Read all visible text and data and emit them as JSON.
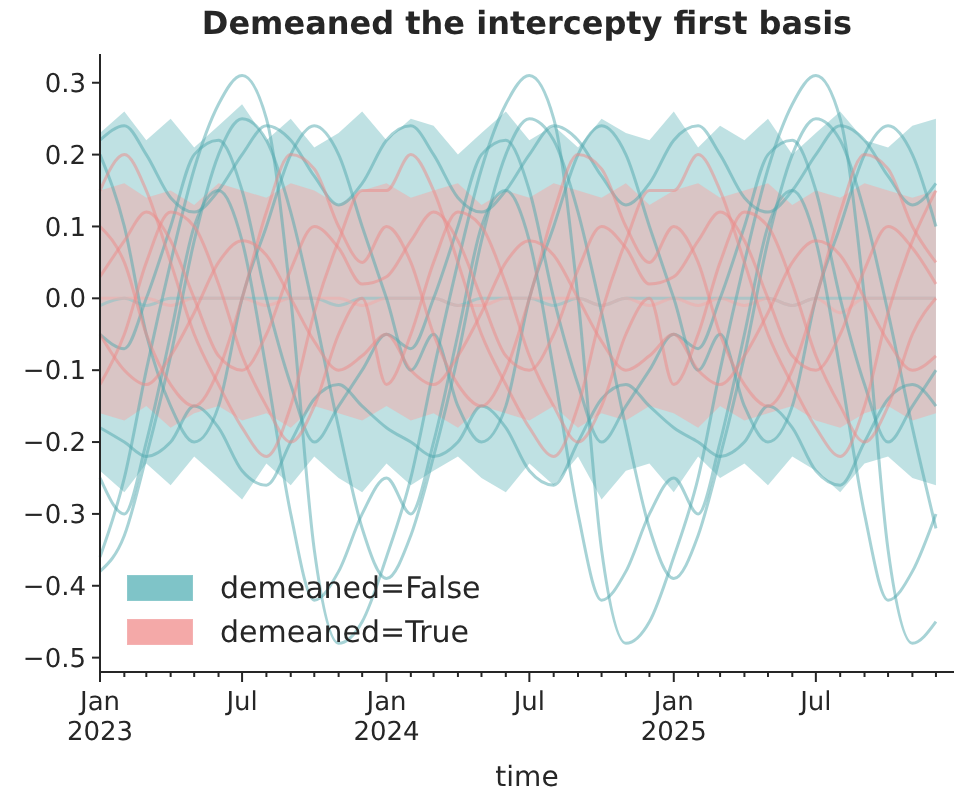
{
  "chart_data": {
    "type": "line",
    "title": "Demeaned the intercepty first basis",
    "xlabel": "time",
    "x": [
      "2023-01",
      "2023-02",
      "2023-03",
      "2023-04",
      "2023-05",
      "2023-06",
      "2023-07",
      "2023-08",
      "2023-09",
      "2023-10",
      "2023-11",
      "2023-12",
      "2024-01",
      "2024-02",
      "2024-03",
      "2024-04",
      "2024-05",
      "2024-06",
      "2024-07",
      "2024-08",
      "2024-09",
      "2024-10",
      "2024-11",
      "2024-12",
      "2025-01",
      "2025-02",
      "2025-03",
      "2025-04",
      "2025-05",
      "2025-06",
      "2025-07",
      "2025-08",
      "2025-09",
      "2025-10",
      "2025-11",
      "2025-12"
    ],
    "xlim": [
      "2023-01-01",
      "2025-12-24"
    ],
    "xticks": [
      {
        "value": "2023-01-01",
        "label": "Jan\n2023"
      },
      {
        "value": "2023-02-01",
        "label": null
      },
      {
        "value": "2023-03-01",
        "label": null
      },
      {
        "value": "2023-04-01",
        "label": null
      },
      {
        "value": "2023-05-01",
        "label": null
      },
      {
        "value": "2023-06-01",
        "label": null
      },
      {
        "value": "2023-07-01",
        "label": "Jul"
      },
      {
        "value": "2023-08-01",
        "label": null
      },
      {
        "value": "2023-09-01",
        "label": null
      },
      {
        "value": "2023-10-01",
        "label": null
      },
      {
        "value": "2023-11-01",
        "label": null
      },
      {
        "value": "2023-12-01",
        "label": null
      },
      {
        "value": "2024-01-01",
        "label": "Jan\n2024"
      },
      {
        "value": "2024-02-01",
        "label": null
      },
      {
        "value": "2024-03-01",
        "label": null
      },
      {
        "value": "2024-04-01",
        "label": null
      },
      {
        "value": "2024-05-01",
        "label": null
      },
      {
        "value": "2024-06-01",
        "label": null
      },
      {
        "value": "2024-07-01",
        "label": "Jul"
      },
      {
        "value": "2024-08-01",
        "label": null
      },
      {
        "value": "2024-09-01",
        "label": null
      },
      {
        "value": "2024-10-01",
        "label": null
      },
      {
        "value": "2024-11-01",
        "label": null
      },
      {
        "value": "2024-12-01",
        "label": null
      },
      {
        "value": "2025-01-01",
        "label": "Jan\n2025"
      },
      {
        "value": "2025-02-01",
        "label": null
      },
      {
        "value": "2025-03-01",
        "label": null
      },
      {
        "value": "2025-04-01",
        "label": null
      },
      {
        "value": "2025-05-01",
        "label": null
      },
      {
        "value": "2025-06-01",
        "label": null
      },
      {
        "value": "2025-07-01",
        "label": "Jul"
      },
      {
        "value": "2025-08-01",
        "label": null
      },
      {
        "value": "2025-09-01",
        "label": null
      },
      {
        "value": "2025-10-01",
        "label": null
      },
      {
        "value": "2025-11-01",
        "label": null
      },
      {
        "value": "2025-12-01",
        "label": null
      }
    ],
    "ylim": [
      -0.52,
      0.34
    ],
    "yticks": [
      {
        "value": -0.5,
        "label": "−0.5"
      },
      {
        "value": -0.4,
        "label": "−0.4"
      },
      {
        "value": -0.3,
        "label": "−0.3"
      },
      {
        "value": -0.2,
        "label": "−0.2"
      },
      {
        "value": -0.1,
        "label": "−0.1"
      },
      {
        "value": 0,
        "label": "0.0"
      },
      {
        "value": 0.1,
        "label": "0.1"
      },
      {
        "value": 0.2,
        "label": "0.2"
      },
      {
        "value": 0.3,
        "label": "0.3"
      }
    ],
    "legend": "bottom left",
    "grid": false,
    "series": [
      {
        "type": "line",
        "name": "demeaned=False",
        "color": "#7fc4c8",
        "values": [
          -0.01,
          0.0,
          -0.01,
          0.0,
          0.0,
          0.0,
          0.0,
          0.0,
          0.0,
          0.0,
          -0.01,
          0.0,
          0.0,
          0.0,
          0.0,
          -0.01,
          0.0,
          0.0,
          0.0,
          -0.01,
          0.0,
          -0.01,
          0.0,
          0.0,
          0.0,
          0.0,
          0.0,
          0.0,
          0.0,
          -0.01,
          0.0,
          0.0,
          0.0,
          0.0,
          0.0,
          0.0
        ],
        "lower": [
          -0.24,
          -0.27,
          -0.23,
          -0.26,
          -0.22,
          -0.25,
          -0.28,
          -0.23,
          -0.26,
          -0.22,
          -0.25,
          -0.27,
          -0.23,
          -0.26,
          -0.24,
          -0.22,
          -0.25,
          -0.27,
          -0.23,
          -0.26,
          -0.22,
          -0.28,
          -0.24,
          -0.23,
          -0.27,
          -0.22,
          -0.25,
          -0.23,
          -0.26,
          -0.22,
          -0.24,
          -0.27,
          -0.23,
          -0.22,
          -0.25,
          -0.26
        ],
        "upper": [
          0.23,
          0.26,
          0.22,
          0.25,
          0.21,
          0.24,
          0.27,
          0.22,
          0.25,
          0.21,
          0.23,
          0.26,
          0.22,
          0.25,
          0.24,
          0.2,
          0.23,
          0.26,
          0.22,
          0.24,
          0.21,
          0.25,
          0.23,
          0.22,
          0.26,
          0.21,
          0.24,
          0.22,
          0.25,
          0.2,
          0.23,
          0.26,
          0.22,
          0.21,
          0.24,
          0.25
        ]
      },
      {
        "type": "line",
        "name": "demeaned=True",
        "color": "#f4a9a8",
        "values": [
          0.0,
          0.0,
          0.0,
          -0.01,
          0.0,
          0.0,
          0.0,
          -0.01,
          0.0,
          0.0,
          0.0,
          -0.01,
          0.0,
          0.0,
          0.0,
          -0.01,
          -0.01,
          0.0,
          0.0,
          0.0,
          0.0,
          -0.01,
          0.0,
          -0.01,
          0.0,
          -0.01,
          0.0,
          -0.01,
          0.0,
          -0.01,
          0.0,
          -0.02,
          0.0,
          0.0,
          0.0,
          0.0
        ],
        "lower": [
          -0.16,
          -0.17,
          -0.15,
          -0.18,
          -0.16,
          -0.15,
          -0.17,
          -0.16,
          -0.18,
          -0.15,
          -0.16,
          -0.17,
          -0.15,
          -0.17,
          -0.16,
          -0.18,
          -0.15,
          -0.16,
          -0.17,
          -0.15,
          -0.18,
          -0.16,
          -0.17,
          -0.15,
          -0.16,
          -0.18,
          -0.15,
          -0.17,
          -0.16,
          -0.15,
          -0.17,
          -0.18,
          -0.16,
          -0.15,
          -0.17,
          -0.16
        ],
        "upper": [
          0.15,
          0.16,
          0.14,
          0.15,
          0.13,
          0.16,
          0.15,
          0.14,
          0.16,
          0.15,
          0.13,
          0.15,
          0.16,
          0.14,
          0.15,
          0.16,
          0.13,
          0.15,
          0.14,
          0.16,
          0.15,
          0.14,
          0.16,
          0.13,
          0.15,
          0.16,
          0.14,
          0.15,
          0.16,
          0.13,
          0.15,
          0.14,
          0.16,
          0.15,
          0.14,
          0.15
        ]
      },
      {
        "color": "#4fa7ad",
        "values": [
          -0.36,
          -0.25,
          -0.1,
          0.05,
          0.18,
          0.27,
          0.31,
          0.25,
          0.0,
          -0.35,
          -0.48,
          -0.45,
          -0.36,
          -0.25,
          -0.1,
          0.05,
          0.18,
          0.27,
          0.31,
          0.25,
          0.0,
          -0.35,
          -0.48,
          -0.45,
          -0.36,
          -0.25,
          -0.1,
          0.05,
          0.18,
          0.27,
          0.31,
          0.25,
          0.0,
          -0.35,
          -0.48,
          -0.45
        ]
      },
      {
        "color": "#4fa7ad",
        "values": [
          -0.38,
          -0.33,
          -0.22,
          -0.08,
          0.08,
          0.2,
          0.25,
          0.22,
          0.12,
          -0.02,
          -0.18,
          -0.32,
          -0.39,
          -0.33,
          -0.22,
          -0.08,
          0.08,
          0.2,
          0.25,
          0.22,
          0.12,
          -0.02,
          -0.18,
          -0.32,
          -0.39,
          -0.33,
          -0.22,
          -0.08,
          0.08,
          0.2,
          0.25,
          0.22,
          0.12,
          -0.02,
          -0.18,
          -0.32
        ]
      },
      {
        "color": "#4fa7ad",
        "values": [
          0.22,
          0.24,
          0.2,
          0.14,
          0.12,
          0.15,
          0.2,
          0.24,
          0.22,
          0.17,
          0.13,
          0.16,
          0.22,
          0.24,
          0.2,
          0.14,
          0.12,
          0.15,
          0.2,
          0.24,
          0.22,
          0.17,
          0.13,
          0.16,
          0.22,
          0.24,
          0.2,
          0.14,
          0.12,
          0.15,
          0.2,
          0.24,
          0.22,
          0.17,
          0.13,
          0.16
        ]
      },
      {
        "color": "#4fa7ad",
        "values": [
          -0.18,
          -0.2,
          -0.22,
          -0.2,
          -0.15,
          -0.18,
          -0.24,
          -0.26,
          -0.2,
          -0.14,
          -0.12,
          -0.15,
          -0.18,
          -0.2,
          -0.22,
          -0.2,
          -0.15,
          -0.18,
          -0.24,
          -0.26,
          -0.2,
          -0.14,
          -0.12,
          -0.15,
          -0.18,
          -0.2,
          -0.22,
          -0.2,
          -0.15,
          -0.18,
          -0.24,
          -0.26,
          -0.2,
          -0.14,
          -0.12,
          -0.15
        ]
      },
      {
        "color": "#4fa7ad",
        "values": [
          0.2,
          0.1,
          -0.05,
          -0.15,
          -0.2,
          -0.15,
          0.0,
          0.1,
          0.2,
          0.24,
          0.2,
          0.1,
          0.0,
          -0.1,
          -0.05,
          -0.15,
          -0.2,
          -0.15,
          0.0,
          0.1,
          0.2,
          0.24,
          0.2,
          0.1,
          0.0,
          -0.1,
          -0.05,
          -0.15,
          -0.2,
          -0.15,
          0.0,
          0.1,
          0.2,
          0.24,
          0.2,
          0.1
        ]
      },
      {
        "color": "#4fa7ad",
        "values": [
          -0.05,
          -0.07,
          0.0,
          0.1,
          0.2,
          0.22,
          0.15,
          0.0,
          -0.12,
          -0.2,
          -0.15,
          -0.1,
          -0.05,
          -0.07,
          0.0,
          0.1,
          0.2,
          0.22,
          0.15,
          0.0,
          -0.12,
          -0.2,
          -0.15,
          -0.1,
          -0.05,
          -0.07,
          0.0,
          0.1,
          0.2,
          0.22,
          0.15,
          0.0,
          -0.12,
          -0.2,
          -0.15,
          -0.1
        ]
      },
      {
        "color": "#4fa7ad",
        "values": [
          -0.25,
          -0.3,
          -0.2,
          -0.05,
          0.1,
          0.15,
          0.08,
          -0.1,
          -0.3,
          -0.42,
          -0.38,
          -0.3,
          -0.25,
          -0.3,
          -0.2,
          -0.05,
          0.1,
          0.15,
          0.08,
          -0.1,
          -0.3,
          -0.42,
          -0.38,
          -0.3,
          -0.25,
          -0.3,
          -0.2,
          -0.05,
          0.1,
          0.15,
          0.08,
          -0.1,
          -0.3,
          -0.42,
          -0.38,
          -0.3
        ]
      },
      {
        "color": "#ee8a88",
        "values": [
          0.1,
          0.05,
          -0.05,
          -0.12,
          -0.15,
          -0.1,
          0.0,
          0.12,
          0.2,
          0.18,
          0.1,
          0.05,
          0.1,
          0.05,
          -0.05,
          -0.12,
          -0.15,
          -0.1,
          0.0,
          0.12,
          0.2,
          0.18,
          0.1,
          0.05,
          0.1,
          0.05,
          -0.05,
          -0.12,
          -0.15,
          -0.1,
          0.0,
          0.12,
          0.2,
          0.18,
          0.1,
          0.05
        ]
      },
      {
        "color": "#ee8a88",
        "values": [
          -0.12,
          -0.05,
          0.05,
          0.12,
          0.1,
          0.02,
          -0.08,
          -0.15,
          -0.2,
          -0.15,
          -0.05,
          0.0,
          -0.12,
          -0.05,
          0.05,
          0.12,
          0.1,
          0.02,
          -0.08,
          -0.15,
          -0.2,
          -0.15,
          -0.05,
          0.0,
          -0.12,
          -0.05,
          0.05,
          0.12,
          0.1,
          0.02,
          -0.08,
          -0.15,
          -0.2,
          -0.15,
          -0.05,
          0.0
        ]
      },
      {
        "color": "#ee8a88",
        "values": [
          0.03,
          0.08,
          0.12,
          0.08,
          0.0,
          -0.08,
          -0.1,
          -0.05,
          0.04,
          0.1,
          0.07,
          0.02,
          0.03,
          0.08,
          0.12,
          0.08,
          0.0,
          -0.08,
          -0.1,
          -0.05,
          0.04,
          0.1,
          0.07,
          0.02,
          0.03,
          0.08,
          0.12,
          0.08,
          0.0,
          -0.08,
          -0.1,
          -0.05,
          0.04,
          0.1,
          0.07,
          0.02
        ]
      },
      {
        "color": "#ee8a88",
        "values": [
          -0.05,
          -0.1,
          -0.12,
          -0.08,
          -0.02,
          0.05,
          0.08,
          0.06,
          0.0,
          -0.06,
          -0.1,
          -0.08,
          -0.05,
          -0.1,
          -0.12,
          -0.08,
          -0.02,
          0.05,
          0.08,
          0.06,
          0.0,
          -0.06,
          -0.1,
          -0.08,
          -0.05,
          -0.1,
          -0.12,
          -0.08,
          -0.02,
          0.05,
          0.08,
          0.06,
          0.0,
          -0.06,
          -0.1,
          -0.08
        ]
      },
      {
        "color": "#ee8a88",
        "values": [
          0.15,
          0.2,
          0.15,
          0.05,
          -0.05,
          -0.12,
          -0.18,
          -0.22,
          -0.15,
          -0.02,
          0.08,
          0.15,
          0.15,
          0.2,
          0.15,
          0.05,
          -0.05,
          -0.12,
          -0.18,
          -0.22,
          -0.15,
          -0.02,
          0.08,
          0.15,
          0.15,
          0.2,
          0.15,
          0.05,
          -0.05,
          -0.12,
          -0.18,
          -0.22,
          -0.15,
          -0.02,
          0.08,
          0.15
        ]
      }
    ]
  }
}
